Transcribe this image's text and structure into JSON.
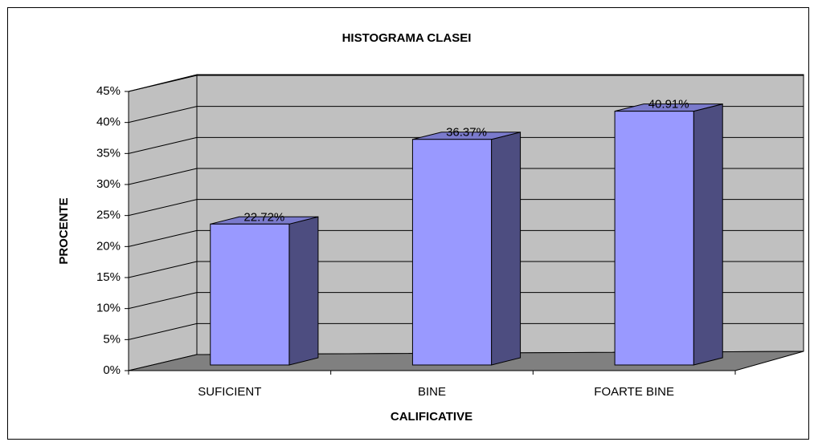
{
  "chart_data": {
    "type": "bar",
    "title": "HISTOGRAMA CLASEI",
    "x_label": "CALIFICATIVE",
    "y_label": "PROCENTE",
    "categories": [
      "SUFICIENT",
      "BINE",
      "FOARTE BINE"
    ],
    "values": [
      22.72,
      36.37,
      40.91
    ],
    "value_labels": [
      "22.72%",
      "36.37%",
      "40.91%"
    ],
    "color": "#9999ff",
    "ylim": [
      0,
      45
    ],
    "yticks": [
      {
        "value": 0,
        "label": "0%"
      },
      {
        "value": 5,
        "label": "5%"
      },
      {
        "value": 10,
        "label": "10%"
      },
      {
        "value": 15,
        "label": "15%"
      },
      {
        "value": 20,
        "label": "20%"
      },
      {
        "value": 25,
        "label": "25%"
      },
      {
        "value": 30,
        "label": "30%"
      },
      {
        "value": 35,
        "label": "35%"
      },
      {
        "value": 40,
        "label": "40%"
      },
      {
        "value": 45,
        "label": "45%"
      }
    ],
    "grid": true
  }
}
